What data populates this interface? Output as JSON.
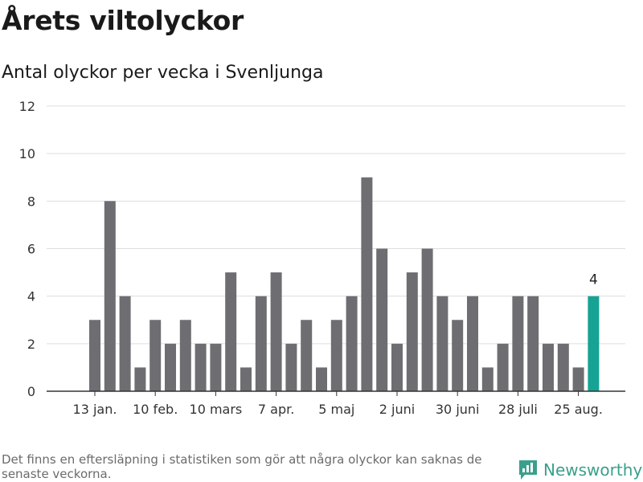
{
  "header": {
    "title": "Årets viltolyckor",
    "subtitle": "Antal olyckor per vecka i Svenljunga"
  },
  "footer": {
    "note": "Det finns en eftersläpning i statistiken som gör att några olyckor kan saknas de senaste veckorna.",
    "brand": "Newsworthy"
  },
  "colors": {
    "bar": "#6e6d72",
    "highlight": "#16a394",
    "grid": "#dddddd",
    "brand": "#3aa08c"
  },
  "chart_data": {
    "type": "bar",
    "title": "Årets viltolyckor",
    "subtitle": "Antal olyckor per vecka i Svenljunga",
    "xlabel": "",
    "ylabel": "",
    "ylim": [
      0,
      12
    ],
    "yticks": [
      0,
      2,
      4,
      6,
      8,
      10,
      12
    ],
    "grid": true,
    "x_tick_labels": [
      {
        "label": "13 jan.",
        "at_index": 0
      },
      {
        "label": "10 feb.",
        "at_index": 4
      },
      {
        "label": "10 mars",
        "at_index": 8
      },
      {
        "label": "7 apr.",
        "at_index": 12
      },
      {
        "label": "5 maj",
        "at_index": 16
      },
      {
        "label": "2 juni",
        "at_index": 20
      },
      {
        "label": "30 juni",
        "at_index": 24
      },
      {
        "label": "28 juli",
        "at_index": 28
      },
      {
        "label": "25 aug.",
        "at_index": 32
      }
    ],
    "values": [
      3,
      8,
      4,
      1,
      3,
      2,
      3,
      2,
      2,
      5,
      1,
      4,
      5,
      2,
      3,
      1,
      3,
      4,
      9,
      6,
      2,
      5,
      6,
      4,
      3,
      4,
      1,
      2,
      4,
      4,
      2,
      2,
      1,
      4
    ],
    "highlight_index": 33,
    "highlight_label": "4"
  }
}
